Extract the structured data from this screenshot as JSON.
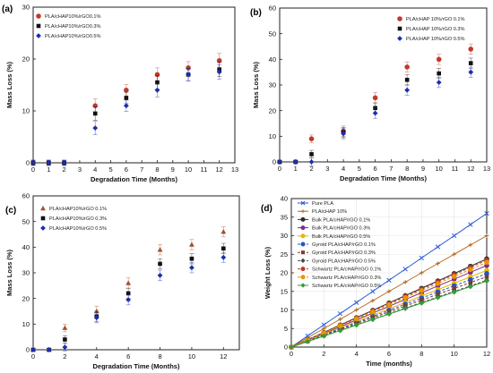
{
  "chart_data": [
    {
      "type": "scatter",
      "panel_label": "(a)",
      "xlabel": "Degradation Time (Months)",
      "ylabel": "Mass Loss (%)",
      "xlim": [
        0,
        13
      ],
      "ylim": [
        0,
        30
      ],
      "xticks": [
        0,
        1,
        2,
        3,
        4,
        5,
        6,
        7,
        8,
        9,
        10,
        11,
        12,
        13
      ],
      "yticks": [
        0,
        10,
        20,
        30
      ],
      "grid": false,
      "legend_position": "top-left",
      "error_bars": true,
      "series": [
        {
          "name": "PLA/cHAP10%/rGO0.1%",
          "marker": "circle",
          "color": "#c0392b",
          "x": [
            0,
            1,
            2,
            4,
            6,
            8,
            10,
            12
          ],
          "y": [
            0,
            0,
            0,
            11,
            14,
            17,
            18.3,
            19.7
          ],
          "err": [
            0.5,
            0.5,
            0.5,
            1.3,
            1.1,
            1.3,
            1.2,
            1.4
          ]
        },
        {
          "name": "PLA/cHAP10%/rGO0.3%",
          "marker": "square",
          "color": "#111111",
          "x": [
            0,
            1,
            2,
            4,
            6,
            8,
            10,
            12
          ],
          "y": [
            0,
            0,
            0,
            9.5,
            12.5,
            15.5,
            17,
            18
          ],
          "err": [
            0.5,
            0.5,
            0.5,
            1.3,
            1.1,
            1.3,
            1.2,
            1.4
          ]
        },
        {
          "name": "PLA/cHAP10%/rGO0.5%",
          "marker": "diamond",
          "color": "#1a2fb0",
          "x": [
            0,
            1,
            2,
            4,
            6,
            8,
            10,
            12
          ],
          "y": [
            0,
            0,
            0,
            6.7,
            11,
            14,
            17,
            17.5
          ],
          "err": [
            0.5,
            0.5,
            0.5,
            1.3,
            1.1,
            1.3,
            1.2,
            1.4
          ]
        }
      ]
    },
    {
      "type": "scatter",
      "panel_label": "(b)",
      "xlabel": "Degradation Time (Months)",
      "ylabel": "Mass Loss (%)",
      "xlim": [
        0,
        13
      ],
      "ylim": [
        0,
        60
      ],
      "xticks": [
        0,
        1,
        2,
        3,
        4,
        5,
        6,
        7,
        8,
        9,
        10,
        11,
        12,
        13
      ],
      "yticks": [
        0,
        10,
        20,
        30,
        40,
        50,
        60
      ],
      "grid": false,
      "legend_position": "top-right",
      "error_bars": true,
      "series": [
        {
          "name": "PLA/cHAP 10%/rGO 0.1%",
          "marker": "circle",
          "color": "#c0392b",
          "x": [
            0,
            1,
            2,
            4,
            6,
            8,
            10,
            12
          ],
          "y": [
            0,
            0,
            9,
            12,
            25,
            37,
            40,
            44
          ],
          "err": [
            0.5,
            0.5,
            1.5,
            2,
            2,
            2,
            2,
            2
          ]
        },
        {
          "name": "PLA/cHAP 10%/rGO 0.3%",
          "marker": "square",
          "color": "#111111",
          "x": [
            0,
            1,
            2,
            4,
            6,
            8,
            10,
            12
          ],
          "y": [
            0,
            0,
            3,
            11.5,
            21,
            32,
            34.5,
            38.5
          ],
          "err": [
            0.5,
            0.5,
            1.5,
            2,
            2,
            2,
            2,
            2
          ]
        },
        {
          "name": "PLA/cHAP 10%/rGO 0.5%",
          "marker": "diamond",
          "color": "#1a2fb0",
          "x": [
            0,
            1,
            2,
            4,
            6,
            8,
            10,
            12
          ],
          "y": [
            0,
            0,
            0,
            11,
            19,
            28,
            31,
            35
          ],
          "err": [
            0.5,
            0.5,
            1.5,
            2,
            2,
            2,
            2,
            2
          ]
        }
      ]
    },
    {
      "type": "scatter",
      "panel_label": "(c)",
      "xlabel": "Degradation Time (Months)",
      "ylabel": "Mass Loss (%)",
      "xlim": [
        0,
        13
      ],
      "ylim": [
        0,
        60
      ],
      "xticks": [
        0,
        2,
        4,
        6,
        8,
        10,
        12
      ],
      "yticks": [
        0,
        10,
        20,
        30,
        40,
        50,
        60
      ],
      "grid": false,
      "legend_position": "top-left",
      "error_bars": true,
      "series": [
        {
          "name": "PLA/cHAP10%/rGO 0.1%",
          "marker": "triangle",
          "color": "#a0522d",
          "x": [
            0,
            1,
            2,
            4,
            6,
            8,
            10,
            12
          ],
          "y": [
            0,
            0,
            8.5,
            15,
            26,
            39,
            41,
            46
          ],
          "err": [
            0.5,
            0.5,
            1.5,
            2,
            2,
            2,
            2,
            2
          ]
        },
        {
          "name": "PLA/cHAP10%/rGO 0.3%",
          "marker": "square",
          "color": "#111111",
          "x": [
            0,
            1,
            2,
            4,
            6,
            8,
            10,
            12
          ],
          "y": [
            0,
            0,
            4,
            13,
            22,
            33.5,
            35.5,
            39.5
          ],
          "err": [
            0.5,
            0.5,
            1.5,
            2,
            2,
            2,
            2,
            2
          ]
        },
        {
          "name": "PLA/cHAP10%/rGO 0.5%",
          "marker": "diamond",
          "color": "#1a2fb0",
          "x": [
            0,
            1,
            2,
            4,
            6,
            8,
            10,
            12
          ],
          "y": [
            0,
            0,
            1,
            12.5,
            19.5,
            29,
            32,
            36
          ],
          "err": [
            0.5,
            0.5,
            1.5,
            2,
            2,
            2,
            2,
            2
          ]
        }
      ]
    },
    {
      "type": "line",
      "panel_label": "(d)",
      "xlabel": "Time (months)",
      "ylabel": "Weight Loss (%)",
      "xlim": [
        0,
        12
      ],
      "ylim": [
        0,
        40
      ],
      "xticks": [
        0,
        2,
        4,
        6,
        8,
        10,
        12
      ],
      "yticks": [
        0,
        5,
        10,
        15,
        20,
        25,
        30,
        35,
        40
      ],
      "grid": true,
      "legend_position": "top-left",
      "x": [
        0,
        1,
        2,
        3,
        4,
        5,
        6,
        7,
        8,
        9,
        10,
        11,
        12
      ],
      "series": [
        {
          "name": "Pure PLA",
          "marker": "x",
          "color": "#2a5bd7",
          "dash": false,
          "slope": 3.0
        },
        {
          "name": "PLA/cHAP 10%",
          "marker": "plus",
          "color": "#b5651d",
          "dash": false,
          "slope": 2.5
        },
        {
          "name": "Bulk PLA/cHAP/rGO 0.1%",
          "marker": "circle",
          "color": "#2b2b2b",
          "dash": false,
          "slope": 1.98
        },
        {
          "name": "Bulk PLA/cHAP/rGO 0.3%",
          "marker": "circle",
          "color": "#7b2d8e",
          "dash": false,
          "slope": 1.83
        },
        {
          "name": "Bulk PLA/cHAP/rGO 0.5%",
          "marker": "circle",
          "color": "#e6b800",
          "dash": false,
          "slope": 1.72
        },
        {
          "name": "Gyroid PLA/cHAP/rGO 0.1%",
          "marker": "circle",
          "color": "#2255cc",
          "dash": true,
          "slope": 1.65
        },
        {
          "name": "Gyroid PLA/cHAP/rGO 0.3%",
          "marker": "square",
          "color": "#7a3b2e",
          "dash": true,
          "slope": 1.58
        },
        {
          "name": "Gyroid PLA/cHAP/rGO 0.5%",
          "marker": "diamond",
          "color": "#4a4a4a",
          "dash": true,
          "slope": 1.5
        },
        {
          "name": "Schwartz PLA/cHAP/rGO 0.1%",
          "marker": "circle",
          "color": "#c0392b",
          "dash": true,
          "slope": 1.95
        },
        {
          "name": "Schwartz PLA/cHAP/rGO 0.3%",
          "marker": "circle",
          "color": "#e69500",
          "dash": true,
          "slope": 1.9
        },
        {
          "name": "Schwartz PLA/cHAP/rGO 0.5%",
          "marker": "diamond",
          "color": "#2e9e3a",
          "dash": false,
          "slope": 1.48
        }
      ]
    }
  ]
}
